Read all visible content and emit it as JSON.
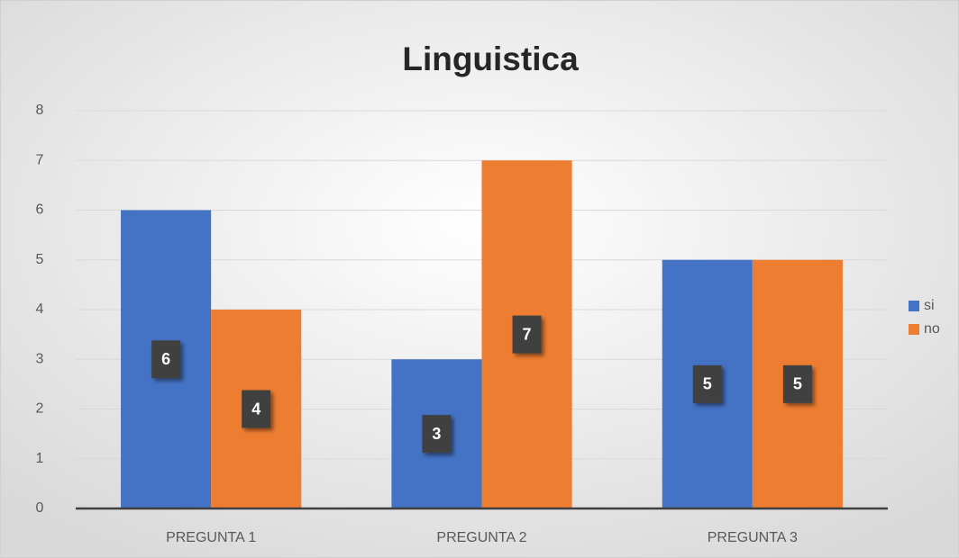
{
  "chart_data": {
    "type": "bar",
    "title": "Linguistica",
    "categories": [
      "PREGUNTA 1",
      "PREGUNTA 2",
      "PREGUNTA 3"
    ],
    "series": [
      {
        "name": "si",
        "color": "#4472c4",
        "values": [
          6,
          3,
          5
        ]
      },
      {
        "name": "no",
        "color": "#ed7d31",
        "values": [
          4,
          7,
          5
        ]
      }
    ],
    "ylim": [
      0,
      8
    ],
    "yticks": [
      0,
      1,
      2,
      3,
      4,
      5,
      6,
      7,
      8
    ],
    "grid": true,
    "legend": "right"
  }
}
